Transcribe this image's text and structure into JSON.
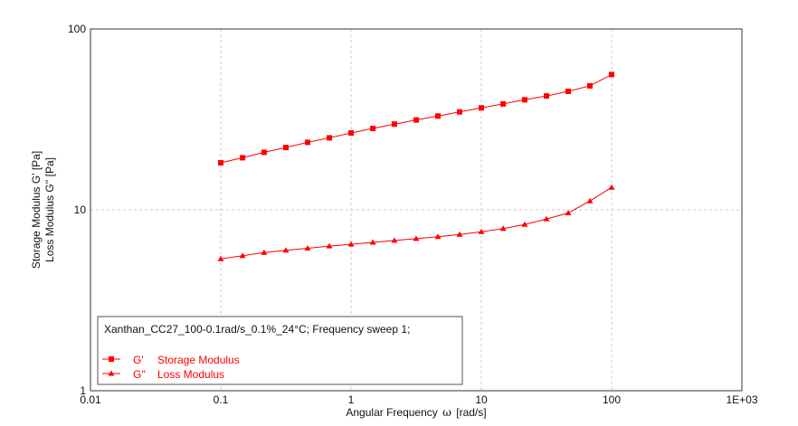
{
  "chart_data": {
    "type": "scatter",
    "x_scale": "log",
    "y_scale": "log",
    "xlim": [
      0.01,
      1000
    ],
    "ylim": [
      1,
      100
    ],
    "x_ticks": [
      "0.01",
      "0.1",
      "1",
      "10",
      "100",
      "1E+03"
    ],
    "y_ticks": [
      "1",
      "10",
      "100"
    ],
    "xlabel_main": "Angular Frequency",
    "xlabel_symbol": "ω",
    "xlabel_unit": "[rad/s]",
    "ylabel_lines": [
      "Storage Modulus G' [Pa]",
      "Loss Modulus G'' [Pa]"
    ],
    "grid": "dashed",
    "legend_position": "bottom-left",
    "legend_title": "Xanthan_CC27_100-0.1rad/s_0.1%_24°C; Frequency sweep 1;",
    "series": [
      {
        "name": "G'",
        "description": "Storage Modulus",
        "marker": "square",
        "color": "#ff0000",
        "x": [
          0.1,
          0.147,
          0.215,
          0.316,
          0.464,
          0.681,
          1,
          1.47,
          2.15,
          3.16,
          4.64,
          6.81,
          10,
          14.7,
          21.5,
          31.6,
          46.4,
          68.1,
          100
        ],
        "y": [
          18.2,
          19.4,
          20.8,
          22.1,
          23.6,
          25.0,
          26.6,
          28.2,
          29.8,
          31.4,
          33.0,
          34.8,
          36.6,
          38.5,
          40.6,
          42.6,
          45.2,
          48.5,
          56.0
        ]
      },
      {
        "name": "G''",
        "description": "Loss Modulus",
        "marker": "triangle",
        "color": "#ff0000",
        "x": [
          0.1,
          0.147,
          0.215,
          0.316,
          0.464,
          0.681,
          1,
          1.47,
          2.15,
          3.16,
          4.64,
          6.81,
          10,
          14.7,
          21.5,
          31.6,
          46.4,
          68.1,
          100
        ],
        "y": [
          5.35,
          5.58,
          5.8,
          5.97,
          6.13,
          6.3,
          6.45,
          6.61,
          6.77,
          6.93,
          7.1,
          7.3,
          7.56,
          7.88,
          8.3,
          8.9,
          9.6,
          11.2,
          13.3
        ]
      }
    ]
  }
}
